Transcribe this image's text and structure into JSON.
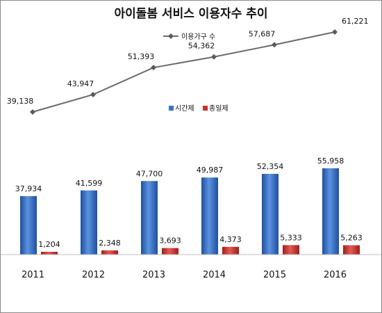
{
  "chart_data": {
    "type": "bar",
    "title": "아이돌봄 서비스 이용자수 추이",
    "categories": [
      "2011",
      "2012",
      "2013",
      "2014",
      "2015",
      "2016"
    ],
    "series": [
      {
        "name": "시간제",
        "kind": "bar",
        "color": "#3a74c9",
        "values": [
          37934,
          41599,
          47700,
          49987,
          52354,
          55958
        ],
        "labels": [
          "37,934",
          "41,599",
          "47,700",
          "49,987",
          "52,354",
          "55,958"
        ]
      },
      {
        "name": "종일제",
        "kind": "bar",
        "color": "#c9302b",
        "values": [
          1204,
          2348,
          3693,
          4373,
          5333,
          5263
        ],
        "labels": [
          "1,204",
          "2,348",
          "3,693",
          "4,373",
          "5,333",
          "5,263"
        ]
      },
      {
        "name": "이용가구 수",
        "kind": "line",
        "color": "#6b6b6b",
        "values": [
          39138,
          43947,
          51393,
          54362,
          57687,
          61221
        ],
        "labels": [
          "39,138",
          "43,947",
          "51,393",
          "54,362",
          "57,687",
          "61,221"
        ]
      }
    ],
    "grid": false,
    "legend_placement": "top-center"
  }
}
